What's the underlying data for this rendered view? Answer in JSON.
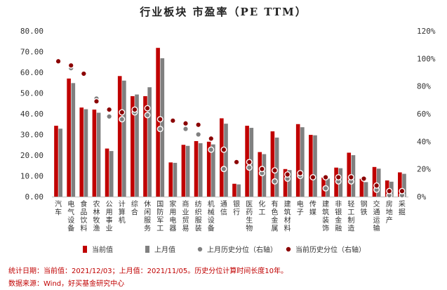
{
  "title": "行业板块 市盈率（PE TTM）",
  "notes": {
    "stat_date": "统计日期：当前值：2021/12/03；上月值：2021/11/05。历史分位计算时间长度10年。",
    "source": "数据来源：Wind，好买基金研究中心"
  },
  "colors": {
    "current": "#c00000",
    "last_month": "#808080",
    "current_pct": "#8b0000",
    "last_month_pct": "#808080"
  },
  "chart_data": {
    "type": "bar",
    "categories": [
      "汽车",
      "电气设备",
      "食品饮料",
      "农林牧渔",
      "公用事业",
      "计算机",
      "综合",
      "休闲服务",
      "国防军工",
      "家用电器",
      "商业贸易",
      "纺织服装",
      "机械设备",
      "通信",
      "银行",
      "医药生物",
      "化工",
      "有色金属",
      "建筑材料",
      "电子",
      "传媒",
      "建筑装饰",
      "非银金融",
      "轻工制造",
      "钢铁",
      "交通运输",
      "房地产",
      "采掘"
    ],
    "series": [
      {
        "name": "当前值",
        "axis": "left",
        "values": [
          34.2,
          57.0,
          43.0,
          42.0,
          23.2,
          58.2,
          48.5,
          48.5,
          71.8,
          16.5,
          25.0,
          26.8,
          26.5,
          37.8,
          6.2,
          34.2,
          21.5,
          31.5,
          13.3,
          35.0,
          29.8,
          9.2,
          14.0,
          21.2,
          8.6,
          14.3,
          7.8,
          11.7
        ]
      },
      {
        "name": "上月值",
        "axis": "left",
        "values": [
          32.8,
          54.8,
          42.2,
          40.5,
          22.0,
          56.0,
          49.3,
          52.8,
          66.8,
          16.3,
          24.5,
          25.8,
          25.2,
          35.2,
          5.9,
          33.2,
          20.5,
          28.5,
          12.8,
          33.5,
          29.6,
          8.7,
          13.7,
          20.0,
          7.0,
          13.5,
          7.2,
          11.0
        ]
      },
      {
        "name": "上月历史分位（右轴）",
        "axis": "right",
        "values": [
          98,
          93,
          null,
          71,
          58,
          56,
          61,
          59,
          49,
          null,
          49,
          45,
          34,
          20,
          null,
          21,
          17,
          11,
          13,
          15,
          null,
          6,
          11,
          11,
          null,
          5,
          1,
          1
        ]
      },
      {
        "name": "当前历史分位（右轴）",
        "axis": "right",
        "values": [
          98,
          95,
          89,
          69,
          63,
          61,
          63,
          64,
          56,
          55,
          53,
          52,
          42,
          34,
          25,
          25,
          20,
          19,
          16,
          17,
          14,
          14,
          14,
          14,
          13,
          8,
          4,
          4
        ]
      }
    ],
    "y_left": {
      "ticks": [
        "0.00",
        "10.00",
        "20.00",
        "30.00",
        "40.00",
        "50.00",
        "60.00",
        "70.00",
        "80.00"
      ],
      "ylim": [
        0,
        80
      ]
    },
    "y_right": {
      "ticks": [
        "0%",
        "20%",
        "40%",
        "60%",
        "80%",
        "100%",
        "120%"
      ],
      "ylim": [
        0,
        120
      ]
    },
    "legend_position": "bottom"
  }
}
